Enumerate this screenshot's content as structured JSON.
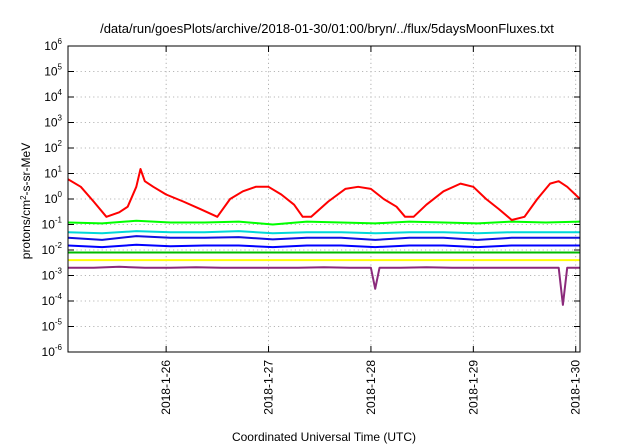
{
  "chart_data": {
    "type": "line",
    "title": "/data/run/goesPlots/archive/2018-01-30/01:00/bryn/../flux/5daysMoonFluxes.txt",
    "xlabel": "Coordinated Universal Time (UTC)",
    "ylabel_parts": [
      "protons/cm",
      "2",
      "-s-sr-MeV"
    ],
    "yscale": "log",
    "ylim": [
      1e-06,
      1000000.0
    ],
    "xlim": [
      "2018-01-25 01:00",
      "2018-01-30 01:00"
    ],
    "grid": true,
    "x_ticks": [
      {
        "label": "2018-1-26",
        "at": "2018-01-26 00:00"
      },
      {
        "label": "2018-1-27",
        "at": "2018-01-27 00:00"
      },
      {
        "label": "2018-1-28",
        "at": "2018-01-28 00:00"
      },
      {
        "label": "2018-1-29",
        "at": "2018-01-29 00:00"
      },
      {
        "label": "2018-1-30",
        "at": "2018-01-30 00:00"
      }
    ],
    "y_ticks": [
      {
        "base": "10",
        "exp": "-6",
        "value": 1e-06
      },
      {
        "base": "10",
        "exp": "-5",
        "value": 1e-05
      },
      {
        "base": "10",
        "exp": "-4",
        "value": 0.0001
      },
      {
        "base": "10",
        "exp": "-3",
        "value": 0.001
      },
      {
        "base": "10",
        "exp": "-2",
        "value": 0.01
      },
      {
        "base": "10",
        "exp": "-1",
        "value": 0.1
      },
      {
        "base": "10",
        "exp": "0",
        "value": 1
      },
      {
        "base": "10",
        "exp": "1",
        "value": 10
      },
      {
        "base": "10",
        "exp": "2",
        "value": 100
      },
      {
        "base": "10",
        "exp": "3",
        "value": 1000
      },
      {
        "base": "10",
        "exp": "4",
        "value": 10000
      },
      {
        "base": "10",
        "exp": "5",
        "value": 100000
      },
      {
        "base": "10",
        "exp": "6",
        "value": 1000000
      }
    ],
    "series": [
      {
        "color": "#ff0000",
        "x": [
          "2018-01-25 01:00",
          "2018-01-25 04:00",
          "2018-01-25 07:00",
          "2018-01-25 10:00",
          "2018-01-25 13:00",
          "2018-01-25 15:00",
          "2018-01-25 17:00",
          "2018-01-25 18:00",
          "2018-01-25 19:00",
          "2018-01-25 21:00",
          "2018-01-26 00:00",
          "2018-01-26 04:00",
          "2018-01-26 08:00",
          "2018-01-26 12:00",
          "2018-01-26 15:00",
          "2018-01-26 18:00",
          "2018-01-26 21:00",
          "2018-01-27 00:00",
          "2018-01-27 03:00",
          "2018-01-27 06:00",
          "2018-01-27 08:00",
          "2018-01-27 10:00",
          "2018-01-27 14:00",
          "2018-01-27 18:00",
          "2018-01-27 21:00",
          "2018-01-28 00:00",
          "2018-01-28 03:00",
          "2018-01-28 06:00",
          "2018-01-28 08:00",
          "2018-01-28 10:00",
          "2018-01-28 13:00",
          "2018-01-28 17:00",
          "2018-01-28 21:00",
          "2018-01-29 00:00",
          "2018-01-29 03:00",
          "2018-01-29 06:00",
          "2018-01-29 09:00",
          "2018-01-29 12:00",
          "2018-01-29 15:00",
          "2018-01-29 18:00",
          "2018-01-29 20:00",
          "2018-01-29 22:00",
          "2018-01-30 01:00"
        ],
        "y": [
          6,
          3,
          0.8,
          0.2,
          0.3,
          0.5,
          3,
          15,
          5,
          3,
          1.5,
          0.8,
          0.4,
          0.2,
          1,
          2,
          3,
          3,
          1.5,
          0.6,
          0.2,
          0.2,
          0.8,
          2.5,
          3,
          2.5,
          1,
          0.5,
          0.2,
          0.2,
          0.6,
          2,
          4,
          3,
          1,
          0.4,
          0.15,
          0.2,
          1,
          4,
          5,
          3,
          1
        ]
      },
      {
        "color": "#00ff00",
        "x": [
          "2018-01-25 01:00",
          "2018-01-25 09:00",
          "2018-01-25 17:00",
          "2018-01-26 01:00",
          "2018-01-26 09:00",
          "2018-01-26 17:00",
          "2018-01-27 01:00",
          "2018-01-27 09:00",
          "2018-01-27 17:00",
          "2018-01-28 01:00",
          "2018-01-28 09:00",
          "2018-01-28 17:00",
          "2018-01-29 01:00",
          "2018-01-29 09:00",
          "2018-01-29 17:00",
          "2018-01-30 01:00"
        ],
        "y": [
          0.12,
          0.11,
          0.14,
          0.12,
          0.12,
          0.13,
          0.1,
          0.13,
          0.12,
          0.11,
          0.13,
          0.12,
          0.11,
          0.13,
          0.12,
          0.13
        ]
      },
      {
        "color": "#00d8d8",
        "x": [
          "2018-01-25 01:00",
          "2018-01-25 09:00",
          "2018-01-25 17:00",
          "2018-01-26 01:00",
          "2018-01-26 09:00",
          "2018-01-26 17:00",
          "2018-01-27 01:00",
          "2018-01-27 09:00",
          "2018-01-27 17:00",
          "2018-01-28 01:00",
          "2018-01-28 09:00",
          "2018-01-28 17:00",
          "2018-01-29 01:00",
          "2018-01-29 09:00",
          "2018-01-29 17:00",
          "2018-01-30 01:00"
        ],
        "y": [
          0.05,
          0.045,
          0.055,
          0.05,
          0.05,
          0.055,
          0.045,
          0.05,
          0.05,
          0.045,
          0.05,
          0.05,
          0.045,
          0.05,
          0.05,
          0.05
        ]
      },
      {
        "color": "#1010e0",
        "x": [
          "2018-01-25 01:00",
          "2018-01-25 09:00",
          "2018-01-25 17:00",
          "2018-01-26 01:00",
          "2018-01-26 09:00",
          "2018-01-26 17:00",
          "2018-01-27 01:00",
          "2018-01-27 09:00",
          "2018-01-27 17:00",
          "2018-01-28 01:00",
          "2018-01-28 09:00",
          "2018-01-28 17:00",
          "2018-01-29 01:00",
          "2018-01-29 09:00",
          "2018-01-29 17:00",
          "2018-01-30 01:00"
        ],
        "y": [
          0.03,
          0.025,
          0.035,
          0.03,
          0.03,
          0.032,
          0.026,
          0.03,
          0.03,
          0.025,
          0.03,
          0.03,
          0.025,
          0.03,
          0.03,
          0.03
        ]
      },
      {
        "color": "#0000ff",
        "x": [
          "2018-01-25 01:00",
          "2018-01-25 09:00",
          "2018-01-25 17:00",
          "2018-01-26 01:00",
          "2018-01-26 09:00",
          "2018-01-26 17:00",
          "2018-01-27 01:00",
          "2018-01-27 09:00",
          "2018-01-27 17:00",
          "2018-01-28 01:00",
          "2018-01-28 09:00",
          "2018-01-28 17:00",
          "2018-01-29 01:00",
          "2018-01-29 09:00",
          "2018-01-29 17:00",
          "2018-01-30 01:00"
        ],
        "y": [
          0.015,
          0.013,
          0.016,
          0.014,
          0.015,
          0.015,
          0.013,
          0.015,
          0.015,
          0.013,
          0.015,
          0.015,
          0.013,
          0.015,
          0.015,
          0.015
        ]
      },
      {
        "color": "#00bb00",
        "x": [
          "2018-01-25 01:00",
          "2018-01-25 09:00",
          "2018-01-25 17:00",
          "2018-01-26 01:00",
          "2018-01-26 09:00",
          "2018-01-26 17:00",
          "2018-01-27 01:00",
          "2018-01-27 09:00",
          "2018-01-27 17:00",
          "2018-01-28 01:00",
          "2018-01-28 09:00",
          "2018-01-28 17:00",
          "2018-01-29 01:00",
          "2018-01-29 09:00",
          "2018-01-29 17:00",
          "2018-01-30 01:00"
        ],
        "y": [
          0.008,
          0.008,
          0.008,
          0.008,
          0.008,
          0.008,
          0.008,
          0.008,
          0.008,
          0.008,
          0.008,
          0.008,
          0.008,
          0.008,
          0.008,
          0.008
        ]
      },
      {
        "color": "#ffff00",
        "x": [
          "2018-01-25 01:00",
          "2018-01-25 09:00",
          "2018-01-25 17:00",
          "2018-01-26 01:00",
          "2018-01-26 09:00",
          "2018-01-26 17:00",
          "2018-01-27 01:00",
          "2018-01-27 09:00",
          "2018-01-27 17:00",
          "2018-01-28 01:00",
          "2018-01-28 09:00",
          "2018-01-28 17:00",
          "2018-01-29 01:00",
          "2018-01-29 09:00",
          "2018-01-29 17:00",
          "2018-01-30 01:00"
        ],
        "y": [
          0.004,
          0.004,
          0.004,
          0.004,
          0.004,
          0.004,
          0.004,
          0.004,
          0.004,
          0.004,
          0.004,
          0.004,
          0.004,
          0.004,
          0.004,
          0.004
        ]
      },
      {
        "color": "#8b2a7b",
        "x": [
          "2018-01-25 01:00",
          "2018-01-25 07:00",
          "2018-01-25 13:00",
          "2018-01-25 19:00",
          "2018-01-26 01:00",
          "2018-01-26 07:00",
          "2018-01-26 13:00",
          "2018-01-26 19:00",
          "2018-01-27 01:00",
          "2018-01-27 07:00",
          "2018-01-27 13:00",
          "2018-01-27 19:00",
          "2018-01-28 00:00",
          "2018-01-28 01:00",
          "2018-01-28 02:00",
          "2018-01-28 07:00",
          "2018-01-28 13:00",
          "2018-01-28 19:00",
          "2018-01-29 01:00",
          "2018-01-29 07:00",
          "2018-01-29 13:00",
          "2018-01-29 18:00",
          "2018-01-29 20:00",
          "2018-01-29 21:00",
          "2018-01-29 22:00",
          "2018-01-30 01:00"
        ],
        "y": [
          0.002,
          0.002,
          0.0022,
          0.002,
          0.002,
          0.0021,
          0.002,
          0.002,
          0.002,
          0.002,
          0.0021,
          0.002,
          0.002,
          0.0003,
          0.002,
          0.002,
          0.0021,
          0.002,
          0.002,
          0.002,
          0.002,
          0.002,
          0.002,
          7e-05,
          0.002,
          0.002
        ]
      }
    ]
  }
}
